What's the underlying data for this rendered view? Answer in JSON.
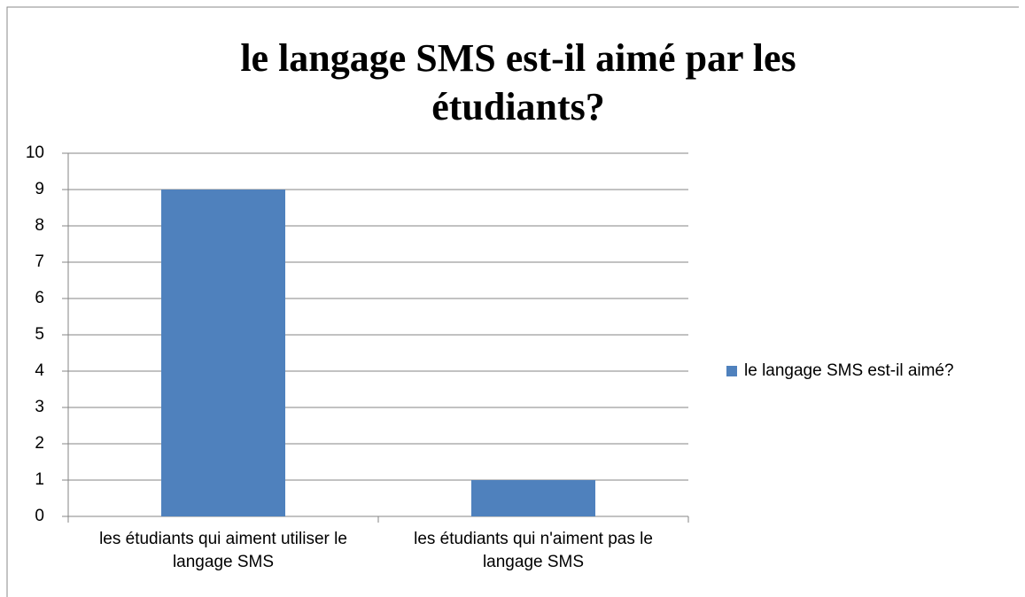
{
  "chart_data": {
    "type": "bar",
    "title": "le langage SMS est-il aimé par les étudiants?",
    "categories": [
      "les étudiants qui aiment utiliser le langage SMS",
      "les étudiants qui n'aiment pas le langage SMS"
    ],
    "series": [
      {
        "name": "le langage SMS est-il aimé?",
        "color": "#4f81bd",
        "values": [
          9,
          1
        ]
      }
    ],
    "ylim": [
      0,
      10
    ],
    "yticks": [
      0,
      1,
      2,
      3,
      4,
      5,
      6,
      7,
      8,
      9,
      10
    ],
    "grid": true,
    "legend": "right"
  }
}
